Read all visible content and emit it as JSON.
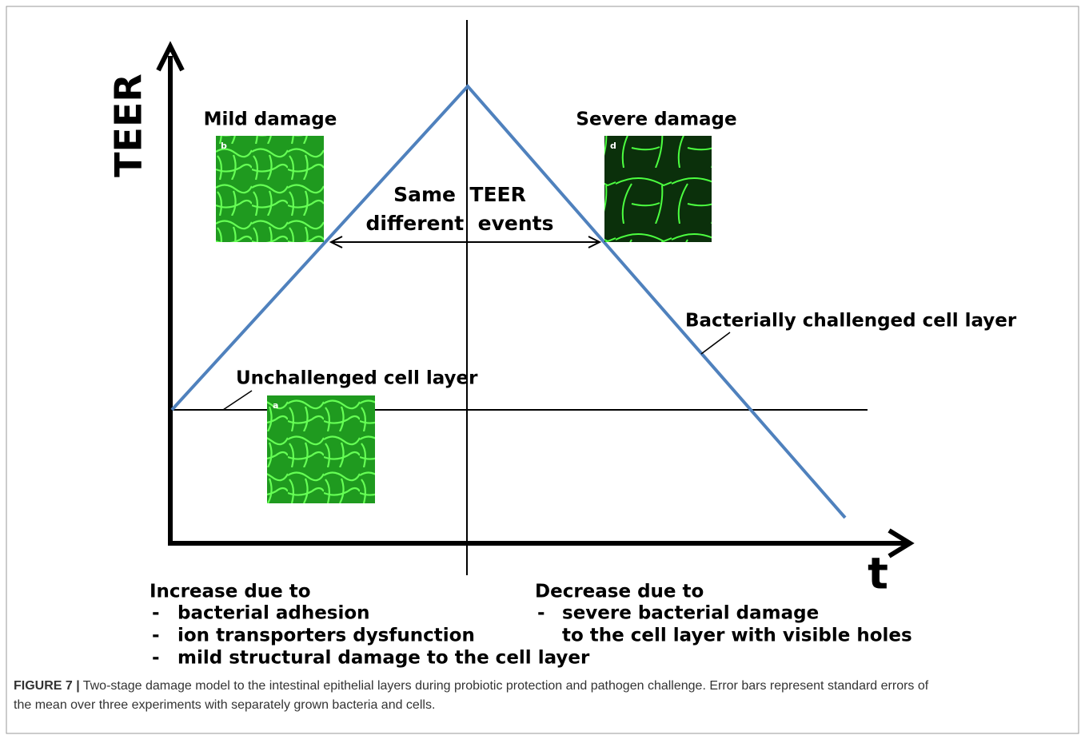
{
  "figure": {
    "axes": {
      "y_label": "TEER",
      "x_label": "t"
    },
    "panels": [
      {
        "title": "Mild damage",
        "letter": "b"
      },
      {
        "title": "Severe damage",
        "letter": "d"
      },
      {
        "letter": "a"
      }
    ],
    "annotations": {
      "same_teer": [
        "Same  TEER",
        "different  events"
      ],
      "challenged": "Bacterially challenged cell layer",
      "unchallenged": "Unchallenged cell layer"
    },
    "increase": {
      "heading": "Increase due to",
      "items": [
        "bacterial adhesion",
        "ion transporters dysfunction",
        "mild structural damage to the cell layer"
      ]
    },
    "decrease": {
      "heading": "Decrease due to",
      "items": [
        "severe bacterial damage"
      ],
      "continuation": "to the cell layer with visible holes"
    },
    "bullet": "-"
  },
  "caption": {
    "label": "FIGURE 7 |",
    "lines": [
      "Two-stage damage model to the intestinal epithelial layers during probiotic protection and pathogen challenge. Error bars represent standard errors of",
      "the mean over three experiments with separately grown bacteria and cells."
    ]
  }
}
